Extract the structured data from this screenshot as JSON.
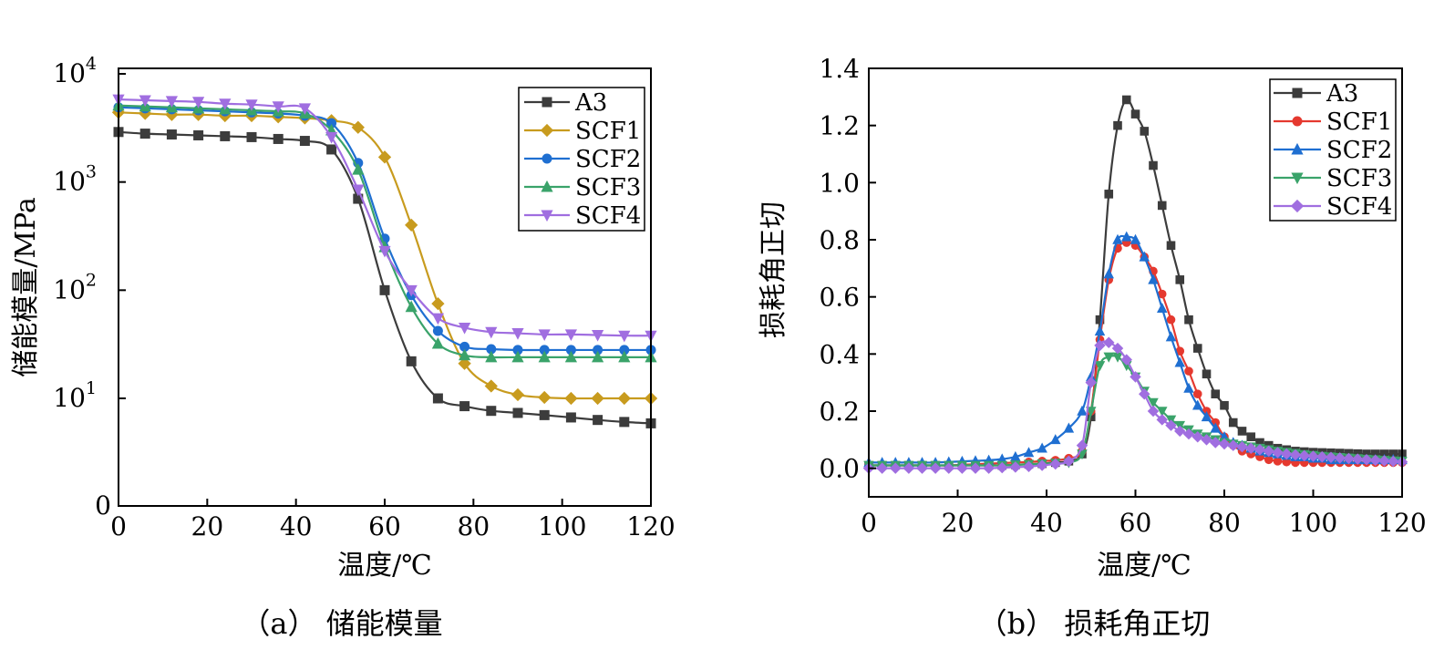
{
  "figure": {
    "caption_a": "（a）  储能模量",
    "caption_b": "（b）  损耗角正切"
  },
  "chart_data": [
    {
      "type": "line",
      "xlabel": "温度/℃",
      "ylabel": "储能模量/MPa",
      "xlim": [
        0,
        120
      ],
      "xticks": [
        0,
        20,
        40,
        60,
        80,
        100,
        120
      ],
      "yscale": "log",
      "yticks": [
        "0",
        "10^1",
        "10^2",
        "10^3",
        "10^4"
      ],
      "legend_position": "top-right",
      "series": [
        {
          "name": "A3",
          "color": "#3c3c3c",
          "marker": "square",
          "x": [
            0,
            6,
            12,
            18,
            24,
            30,
            36,
            42,
            48,
            54,
            60,
            66,
            72,
            78,
            84,
            90,
            96,
            102,
            108,
            114,
            120
          ],
          "y": [
            2900,
            2800,
            2750,
            2700,
            2650,
            2600,
            2500,
            2400,
            2000,
            700,
            100,
            22,
            10,
            8,
            7,
            6.6,
            6.2,
            5.8,
            5.4,
            5.1,
            4.9
          ]
        },
        {
          "name": "SCF1",
          "color": "#c89b1e",
          "marker": "diamond",
          "x": [
            0,
            6,
            12,
            18,
            24,
            30,
            36,
            42,
            48,
            54,
            60,
            66,
            72,
            78,
            84,
            90,
            96,
            102,
            108,
            114,
            120
          ],
          "y": [
            4400,
            4300,
            4200,
            4200,
            4100,
            4100,
            4000,
            3900,
            3700,
            3200,
            1700,
            400,
            75,
            21,
            13,
            10.8,
            10.2,
            10,
            10,
            10,
            10
          ]
        },
        {
          "name": "SCF2",
          "color": "#1f6fd1",
          "marker": "circle",
          "x": [
            0,
            6,
            12,
            18,
            24,
            30,
            36,
            42,
            48,
            54,
            60,
            66,
            72,
            78,
            84,
            90,
            96,
            102,
            108,
            114,
            120
          ],
          "y": [
            4900,
            4800,
            4700,
            4600,
            4500,
            4400,
            4300,
            4100,
            3500,
            1500,
            300,
            90,
            42,
            30,
            28.5,
            28,
            28,
            28,
            28,
            28,
            28
          ]
        },
        {
          "name": "SCF3",
          "color": "#3aa36a",
          "marker": "triangle-up",
          "x": [
            0,
            6,
            12,
            18,
            24,
            30,
            36,
            42,
            48,
            54,
            60,
            66,
            72,
            78,
            84,
            90,
            96,
            102,
            108,
            114,
            120
          ],
          "y": [
            5100,
            5000,
            4900,
            4800,
            4700,
            4600,
            4500,
            4300,
            3000,
            1300,
            250,
            70,
            32,
            25,
            24,
            24,
            24,
            24,
            24,
            24,
            24
          ]
        },
        {
          "name": "SCF4",
          "color": "#a06ee0",
          "marker": "triangle-down",
          "x": [
            0,
            6,
            12,
            18,
            24,
            30,
            36,
            42,
            48,
            54,
            60,
            66,
            72,
            78,
            84,
            90,
            96,
            102,
            108,
            114,
            120
          ],
          "y": [
            5800,
            5700,
            5600,
            5500,
            5300,
            5200,
            5000,
            4800,
            2600,
            850,
            230,
            100,
            55,
            45,
            41,
            40,
            39,
            39,
            38.5,
            38,
            38
          ]
        }
      ]
    },
    {
      "type": "line",
      "xlabel": "温度/℃",
      "ylabel": "损耗角正切",
      "xlim": [
        0,
        120
      ],
      "ylim": [
        -0.1,
        1.4
      ],
      "xticks": [
        0,
        20,
        40,
        60,
        80,
        100,
        120
      ],
      "yticks": [
        "0.0",
        "0.2",
        "0.4",
        "0.6",
        "0.8",
        "1.0",
        "1.2",
        "1.4"
      ],
      "legend_position": "top-right",
      "series": [
        {
          "name": "A3",
          "color": "#3c3c3c",
          "marker": "square",
          "x": [
            0,
            3,
            6,
            9,
            12,
            15,
            18,
            21,
            24,
            27,
            30,
            33,
            36,
            39,
            42,
            45,
            48,
            50,
            52,
            54,
            56,
            58,
            60,
            62,
            64,
            66,
            68,
            70,
            72,
            74,
            76,
            78,
            80,
            82,
            84,
            86,
            88,
            90,
            92,
            94,
            96,
            98,
            100,
            102,
            104,
            106,
            108,
            110,
            112,
            114,
            116,
            118,
            120
          ],
          "y": [
            0.01,
            0.01,
            0.01,
            0.01,
            0.01,
            0.01,
            0.01,
            0.01,
            0.01,
            0.01,
            0.01,
            0.012,
            0.014,
            0.016,
            0.02,
            0.025,
            0.05,
            0.18,
            0.52,
            0.96,
            1.2,
            1.29,
            1.24,
            1.18,
            1.06,
            0.92,
            0.78,
            0.66,
            0.52,
            0.42,
            0.33,
            0.26,
            0.22,
            0.16,
            0.13,
            0.11,
            0.09,
            0.08,
            0.07,
            0.065,
            0.06,
            0.058,
            0.056,
            0.055,
            0.054,
            0.053,
            0.052,
            0.051,
            0.05,
            0.05,
            0.05,
            0.05,
            0.05
          ]
        },
        {
          "name": "SCF1",
          "color": "#e5392f",
          "marker": "circle",
          "x": [
            0,
            3,
            6,
            9,
            12,
            15,
            18,
            21,
            24,
            27,
            30,
            33,
            36,
            39,
            42,
            45,
            48,
            50,
            52,
            54,
            56,
            58,
            60,
            62,
            64,
            66,
            68,
            70,
            72,
            74,
            76,
            78,
            80,
            82,
            84,
            86,
            88,
            90,
            92,
            94,
            96,
            98,
            100,
            102,
            104,
            106,
            108,
            110,
            112,
            114,
            116,
            118,
            120
          ],
          "y": [
            0.01,
            0.01,
            0.01,
            0.01,
            0.01,
            0.01,
            0.01,
            0.012,
            0.014,
            0.016,
            0.018,
            0.02,
            0.022,
            0.025,
            0.028,
            0.035,
            0.06,
            0.2,
            0.45,
            0.66,
            0.77,
            0.79,
            0.78,
            0.74,
            0.69,
            0.61,
            0.52,
            0.41,
            0.34,
            0.26,
            0.2,
            0.16,
            0.11,
            0.08,
            0.06,
            0.05,
            0.04,
            0.03,
            0.025,
            0.022,
            0.02,
            0.02,
            0.02,
            0.02,
            0.02,
            0.02,
            0.02,
            0.02,
            0.02,
            0.02,
            0.02,
            0.02,
            0.02
          ]
        },
        {
          "name": "SCF2",
          "color": "#1f6fd1",
          "marker": "triangle-up",
          "x": [
            0,
            3,
            6,
            9,
            12,
            15,
            18,
            21,
            24,
            27,
            30,
            33,
            36,
            39,
            42,
            45,
            48,
            50,
            52,
            54,
            56,
            58,
            60,
            62,
            64,
            66,
            68,
            70,
            72,
            74,
            76,
            78,
            80,
            82,
            84,
            86,
            88,
            90,
            92,
            94,
            96,
            98,
            100,
            102,
            104,
            106,
            108,
            110,
            112,
            114,
            116,
            118,
            120
          ],
          "y": [
            0.02,
            0.02,
            0.02,
            0.02,
            0.02,
            0.02,
            0.022,
            0.024,
            0.026,
            0.028,
            0.032,
            0.04,
            0.055,
            0.07,
            0.1,
            0.14,
            0.2,
            0.32,
            0.48,
            0.68,
            0.8,
            0.81,
            0.8,
            0.74,
            0.66,
            0.56,
            0.46,
            0.37,
            0.28,
            0.22,
            0.18,
            0.14,
            0.11,
            0.09,
            0.08,
            0.07,
            0.06,
            0.055,
            0.05,
            0.045,
            0.04,
            0.04,
            0.035,
            0.035,
            0.03,
            0.03,
            0.03,
            0.03,
            0.03,
            0.03,
            0.03,
            0.03,
            0.03
          ]
        },
        {
          "name": "SCF3",
          "color": "#3aa36a",
          "marker": "triangle-down",
          "x": [
            0,
            3,
            6,
            9,
            12,
            15,
            18,
            21,
            24,
            27,
            30,
            33,
            36,
            39,
            42,
            45,
            48,
            50,
            52,
            54,
            56,
            58,
            60,
            62,
            64,
            66,
            68,
            70,
            72,
            74,
            76,
            78,
            80,
            82,
            84,
            86,
            88,
            90,
            92,
            94,
            96,
            98,
            100,
            102,
            104,
            106,
            108,
            110,
            112,
            114,
            116,
            118,
            120
          ],
          "y": [
            0.01,
            0.01,
            0.01,
            0.01,
            0.01,
            0.01,
            0.01,
            0.01,
            0.01,
            0.01,
            0.01,
            0.012,
            0.014,
            0.016,
            0.018,
            0.02,
            0.05,
            0.2,
            0.36,
            0.39,
            0.39,
            0.36,
            0.32,
            0.27,
            0.23,
            0.2,
            0.17,
            0.15,
            0.135,
            0.12,
            0.11,
            0.1,
            0.09,
            0.085,
            0.08,
            0.075,
            0.07,
            0.065,
            0.06,
            0.056,
            0.052,
            0.048,
            0.045,
            0.042,
            0.04,
            0.038,
            0.036,
            0.034,
            0.032,
            0.03,
            0.028,
            0.026,
            0.025
          ]
        },
        {
          "name": "SCF4",
          "color": "#a06ee0",
          "marker": "diamond",
          "x": [
            0,
            3,
            6,
            9,
            12,
            15,
            18,
            21,
            24,
            27,
            30,
            33,
            36,
            39,
            42,
            45,
            48,
            50,
            52,
            54,
            56,
            58,
            60,
            62,
            64,
            66,
            68,
            70,
            72,
            74,
            76,
            78,
            80,
            82,
            84,
            86,
            88,
            90,
            92,
            94,
            96,
            98,
            100,
            102,
            104,
            106,
            108,
            110,
            112,
            114,
            116,
            118,
            120
          ],
          "y": [
            0.0,
            0.0,
            0.0,
            0.0,
            0.0,
            0.0,
            0.0,
            0.0,
            0.0,
            0.0,
            0.002,
            0.004,
            0.006,
            0.01,
            0.015,
            0.025,
            0.08,
            0.3,
            0.43,
            0.44,
            0.42,
            0.38,
            0.32,
            0.26,
            0.2,
            0.17,
            0.15,
            0.13,
            0.12,
            0.11,
            0.1,
            0.09,
            0.085,
            0.08,
            0.075,
            0.07,
            0.065,
            0.06,
            0.055,
            0.05,
            0.047,
            0.044,
            0.042,
            0.04,
            0.038,
            0.036,
            0.034,
            0.032,
            0.03,
            0.028,
            0.026,
            0.024,
            0.022
          ]
        }
      ]
    }
  ]
}
